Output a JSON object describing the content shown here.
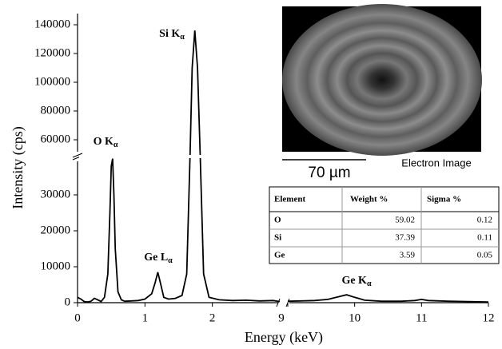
{
  "chart_data": {
    "type": "line",
    "color": "#000000",
    "x_label": "Energy (keV)",
    "y_label": "Intensity (cps)",
    "xlim": [
      0,
      12
    ],
    "xbreak": [
      3,
      9
    ],
    "ylim": [
      0,
      145000
    ],
    "ybreak": [
      40000,
      50000
    ],
    "xticks": [
      0,
      1,
      2,
      9,
      10,
      11,
      12
    ],
    "yticks": [
      0,
      10000,
      20000,
      30000,
      60000,
      80000,
      100000,
      120000,
      140000
    ],
    "x": [
      0,
      0.05,
      0.1,
      0.15,
      0.2,
      0.25,
      0.3,
      0.35,
      0.4,
      0.45,
      0.48,
      0.5,
      0.52,
      0.54,
      0.56,
      0.6,
      0.65,
      0.7,
      0.8,
      0.9,
      1.0,
      1.1,
      1.15,
      1.19,
      1.23,
      1.28,
      1.35,
      1.45,
      1.55,
      1.62,
      1.67,
      1.7,
      1.74,
      1.78,
      1.82,
      1.87,
      1.95,
      2.1,
      2.3,
      2.5,
      2.7,
      2.9,
      3.0,
      9,
      9.2,
      9.4,
      9.6,
      9.75,
      9.88,
      10.0,
      10.15,
      10.4,
      10.7,
      10.9,
      11.0,
      11.1,
      11.4,
      11.7,
      12
    ],
    "values": [
      1500,
      1000,
      300,
      200,
      400,
      1200,
      800,
      300,
      1500,
      8000,
      25000,
      38000,
      40500,
      30000,
      15000,
      3000,
      800,
      400,
      500,
      600,
      1000,
      2500,
      5500,
      8500,
      5500,
      1500,
      1000,
      1200,
      2000,
      8000,
      50000,
      110000,
      136000,
      110000,
      45000,
      8000,
      1500,
      800,
      600,
      700,
      500,
      600,
      300,
      400,
      500,
      600,
      900,
      1600,
      2200,
      1500,
      700,
      400,
      400,
      600,
      900,
      600,
      400,
      300,
      200
    ],
    "annotations": [
      {
        "text": "O K",
        "sub": "α"
      },
      {
        "text": "Si K",
        "sub": "α"
      },
      {
        "text": "Ge L",
        "sub": "α"
      },
      {
        "text": "Ge K",
        "sub": "α"
      }
    ]
  },
  "image": {
    "scale_bar": "70 µm",
    "caption": "Electron Image"
  },
  "table": {
    "header": [
      "Element",
      "Weight %",
      "Sigma %"
    ],
    "rows": [
      [
        "O",
        59.02,
        0.12
      ],
      [
        "Si",
        37.39,
        0.11
      ],
      [
        "Ge",
        3.59,
        0.05
      ]
    ]
  }
}
